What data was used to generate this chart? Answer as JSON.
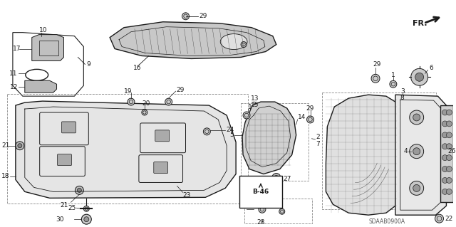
{
  "background_color": "#ffffff",
  "line_color": "#1a1a1a",
  "gray_fill": "#d8d8d8",
  "light_gray": "#efefef",
  "fig_width": 6.4,
  "fig_height": 3.19,
  "dpi": 100,
  "sdaab": "SDAAB0900A"
}
